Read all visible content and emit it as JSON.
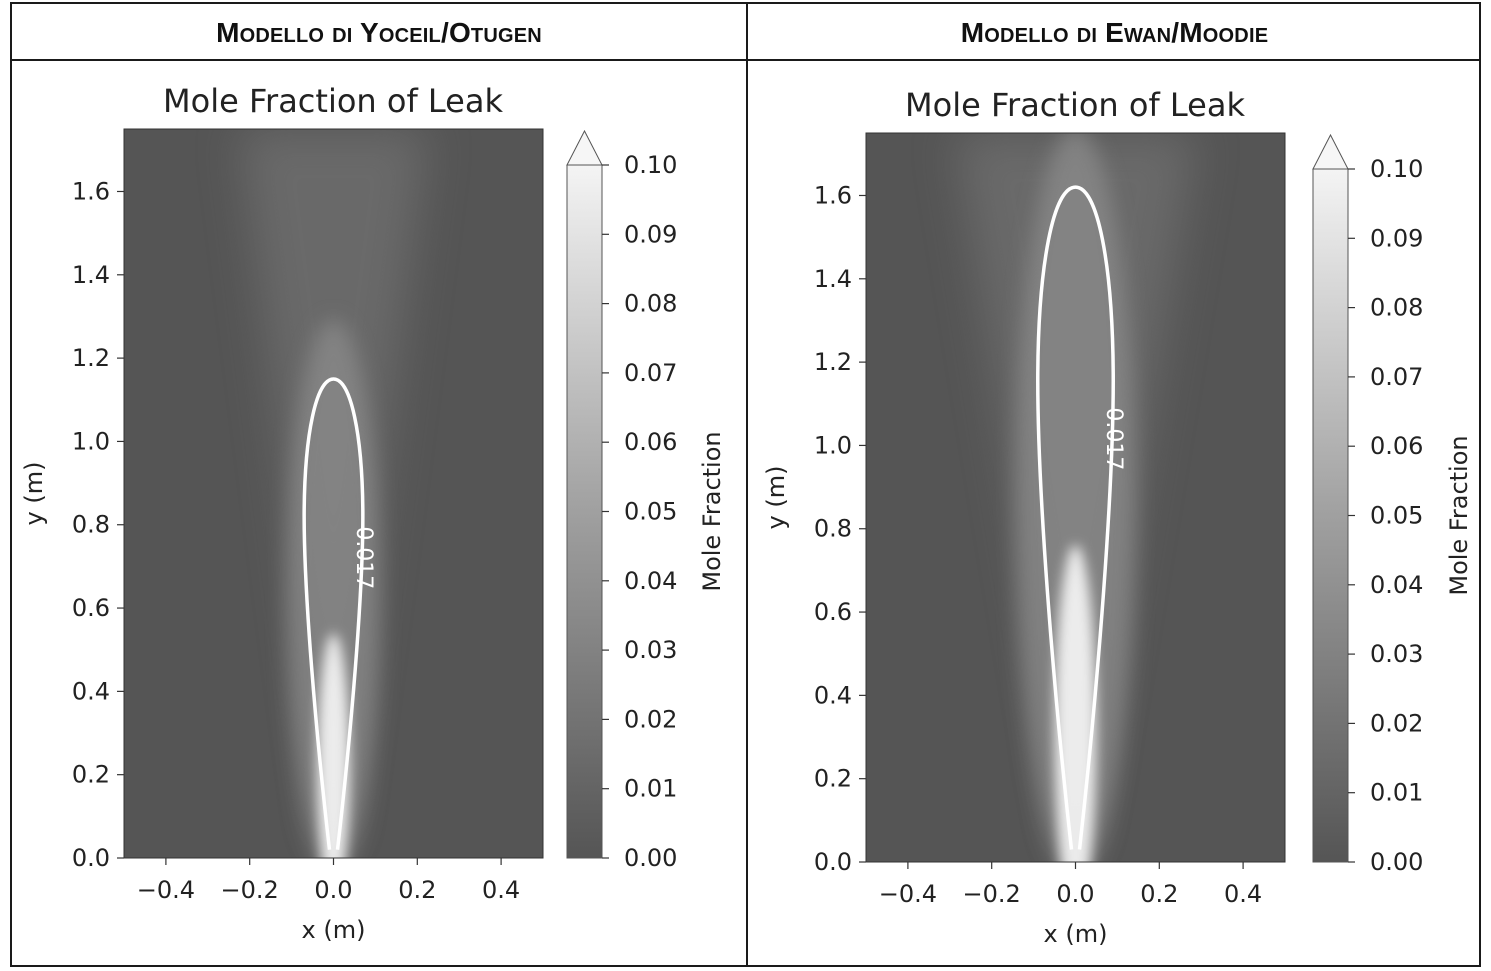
{
  "headers": {
    "left": "Modello di Yoceil/Otugen",
    "right": "Modello di Ewan/Moodie"
  },
  "colors": {
    "background": "#555555",
    "plume_light": "#ffffff",
    "contour": "#ffffff"
  },
  "chart_data": [
    {
      "type": "heatmap",
      "title": "Mole Fraction of Leak",
      "xlabel": "x (m)",
      "ylabel": "y (m)",
      "xlim": [
        -0.5,
        0.5
      ],
      "ylim": [
        0.0,
        1.75
      ],
      "x_ticks": [
        -0.4,
        -0.2,
        0.0,
        0.2,
        0.4
      ],
      "x_tick_labels": [
        "−0.4",
        "−0.2",
        "0.0",
        "0.2",
        "0.4"
      ],
      "y_ticks": [
        0.0,
        0.2,
        0.4,
        0.6,
        0.8,
        1.0,
        1.2,
        1.4,
        1.6
      ],
      "y_tick_labels": [
        "0.0",
        "0.2",
        "0.4",
        "0.6",
        "0.8",
        "1.0",
        "1.2",
        "1.4",
        "1.6"
      ],
      "colorbar": {
        "label": "Mole Fraction",
        "range": [
          0.0,
          0.1
        ],
        "extend": "max",
        "ticks": [
          0.0,
          0.01,
          0.02,
          0.03,
          0.04,
          0.05,
          0.06,
          0.07,
          0.08,
          0.09,
          0.1
        ],
        "tick_labels": [
          "0.00",
          "0.01",
          "0.02",
          "0.03",
          "0.04",
          "0.05",
          "0.06",
          "0.07",
          "0.08",
          "0.09",
          "0.10"
        ]
      },
      "contour": {
        "level": 0.017,
        "label": "0.017",
        "top_y": 1.15,
        "max_half_width": 0.07,
        "source_y": 0.02
      }
    },
    {
      "type": "heatmap",
      "title": "Mole Fraction of Leak",
      "xlabel": "x (m)",
      "ylabel": "y (m)",
      "xlim": [
        -0.5,
        0.5
      ],
      "ylim": [
        0.0,
        1.75
      ],
      "x_ticks": [
        -0.4,
        -0.2,
        0.0,
        0.2,
        0.4
      ],
      "x_tick_labels": [
        "−0.4",
        "−0.2",
        "0.0",
        "0.2",
        "0.4"
      ],
      "y_ticks": [
        0.0,
        0.2,
        0.4,
        0.6,
        0.8,
        1.0,
        1.2,
        1.4,
        1.6
      ],
      "y_tick_labels": [
        "0.0",
        "0.2",
        "0.4",
        "0.6",
        "0.8",
        "1.0",
        "1.2",
        "1.4",
        "1.6"
      ],
      "colorbar": {
        "label": "Mole Fraction",
        "range": [
          0.0,
          0.1
        ],
        "extend": "max",
        "ticks": [
          0.0,
          0.01,
          0.02,
          0.03,
          0.04,
          0.05,
          0.06,
          0.07,
          0.08,
          0.09,
          0.1
        ],
        "tick_labels": [
          "0.00",
          "0.01",
          "0.02",
          "0.03",
          "0.04",
          "0.05",
          "0.06",
          "0.07",
          "0.08",
          "0.09",
          "0.10"
        ]
      },
      "contour": {
        "level": 0.017,
        "label": "0.017",
        "top_y": 1.62,
        "max_half_width": 0.09,
        "source_y": 0.03
      }
    }
  ]
}
